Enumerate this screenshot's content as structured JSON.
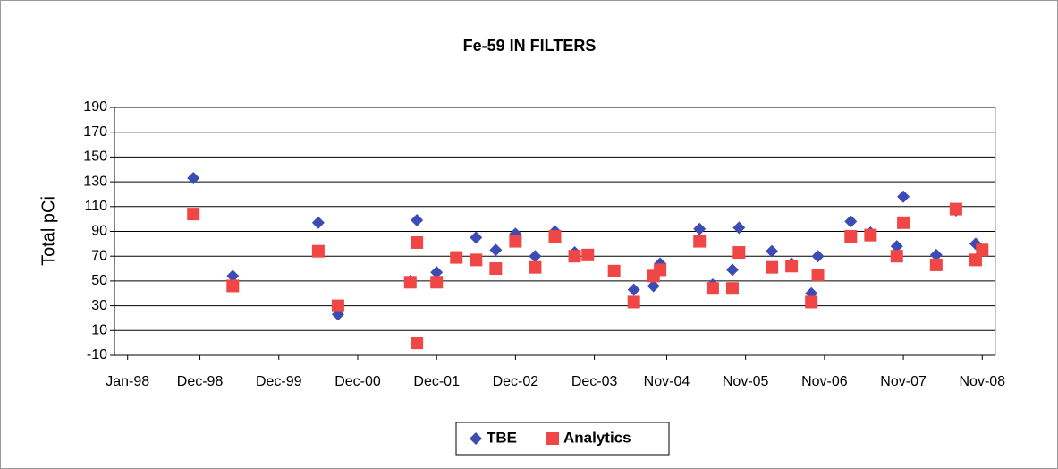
{
  "chart_data": {
    "type": "scatter",
    "title": "Fe-59 IN FILTERS",
    "y_label": "Total pCi",
    "xlim": [
      "1997-11",
      "2009-01"
    ],
    "xticks": [
      {
        "value": "1998-01",
        "label": "Jan-98"
      },
      {
        "value": "1998-12",
        "label": "Dec-98"
      },
      {
        "value": "1999-12",
        "label": "Dec-99"
      },
      {
        "value": "2000-12",
        "label": "Dec-00"
      },
      {
        "value": "2001-12",
        "label": "Dec-01"
      },
      {
        "value": "2002-12",
        "label": "Dec-02"
      },
      {
        "value": "2003-12",
        "label": "Dec-03"
      },
      {
        "value": "2004-11",
        "label": "Nov-04"
      },
      {
        "value": "2005-11",
        "label": "Nov-05"
      },
      {
        "value": "2006-11",
        "label": "Nov-06"
      },
      {
        "value": "2007-11",
        "label": "Nov-07"
      },
      {
        "value": "2008-11",
        "label": "Nov-08"
      }
    ],
    "ylim": [
      -10,
      190
    ],
    "yticks": [
      -10,
      10,
      30,
      50,
      70,
      90,
      110,
      130,
      150,
      170,
      190
    ],
    "grid": true,
    "legend": "bottom",
    "series": [
      {
        "name": "TBE",
        "color": "#3d4cb4",
        "marker": "diamond",
        "x": [
          "1998-11",
          "1999-05",
          "2000-06",
          "2000-09",
          "2001-08",
          "2001-09",
          "2001-12",
          "2002-06",
          "2002-09",
          "2002-12",
          "2003-03",
          "2003-06",
          "2003-09",
          "2004-06",
          "2004-09",
          "2004-10",
          "2005-04",
          "2005-06",
          "2005-09",
          "2005-10",
          "2006-03",
          "2006-06",
          "2006-09",
          "2006-10",
          "2007-03",
          "2007-06",
          "2007-10",
          "2007-11",
          "2008-04",
          "2008-07",
          "2008-10"
        ],
        "values": [
          133,
          54,
          97,
          23,
          50,
          99,
          57,
          85,
          75,
          88,
          70,
          90,
          73,
          43,
          46,
          64,
          92,
          47,
          59,
          93,
          74,
          64,
          40,
          70,
          98,
          89,
          78,
          118,
          71,
          107,
          80
        ]
      },
      {
        "name": "Analytics",
        "color": "#f04646",
        "marker": "square",
        "x": [
          "1998-11",
          "1999-05",
          "2000-06",
          "2000-09",
          "2001-08",
          "2001-09",
          "2001-09",
          "2001-12",
          "2002-03",
          "2002-06",
          "2002-09",
          "2002-12",
          "2003-03",
          "2003-06",
          "2003-09",
          "2003-11",
          "2004-03",
          "2004-06",
          "2004-09",
          "2004-10",
          "2005-04",
          "2005-06",
          "2005-09",
          "2005-10",
          "2006-03",
          "2006-06",
          "2006-09",
          "2006-10",
          "2007-03",
          "2007-06",
          "2007-10",
          "2007-11",
          "2008-04",
          "2008-07",
          "2008-10",
          "2008-11"
        ],
        "values": [
          104,
          46,
          74,
          30,
          49,
          81,
          0,
          49,
          69,
          67,
          60,
          82,
          61,
          86,
          70,
          71,
          58,
          33,
          54,
          59,
          82,
          44,
          44,
          73,
          61,
          62,
          33,
          55,
          86,
          87,
          70,
          97,
          63,
          108,
          67,
          75
        ]
      }
    ]
  }
}
